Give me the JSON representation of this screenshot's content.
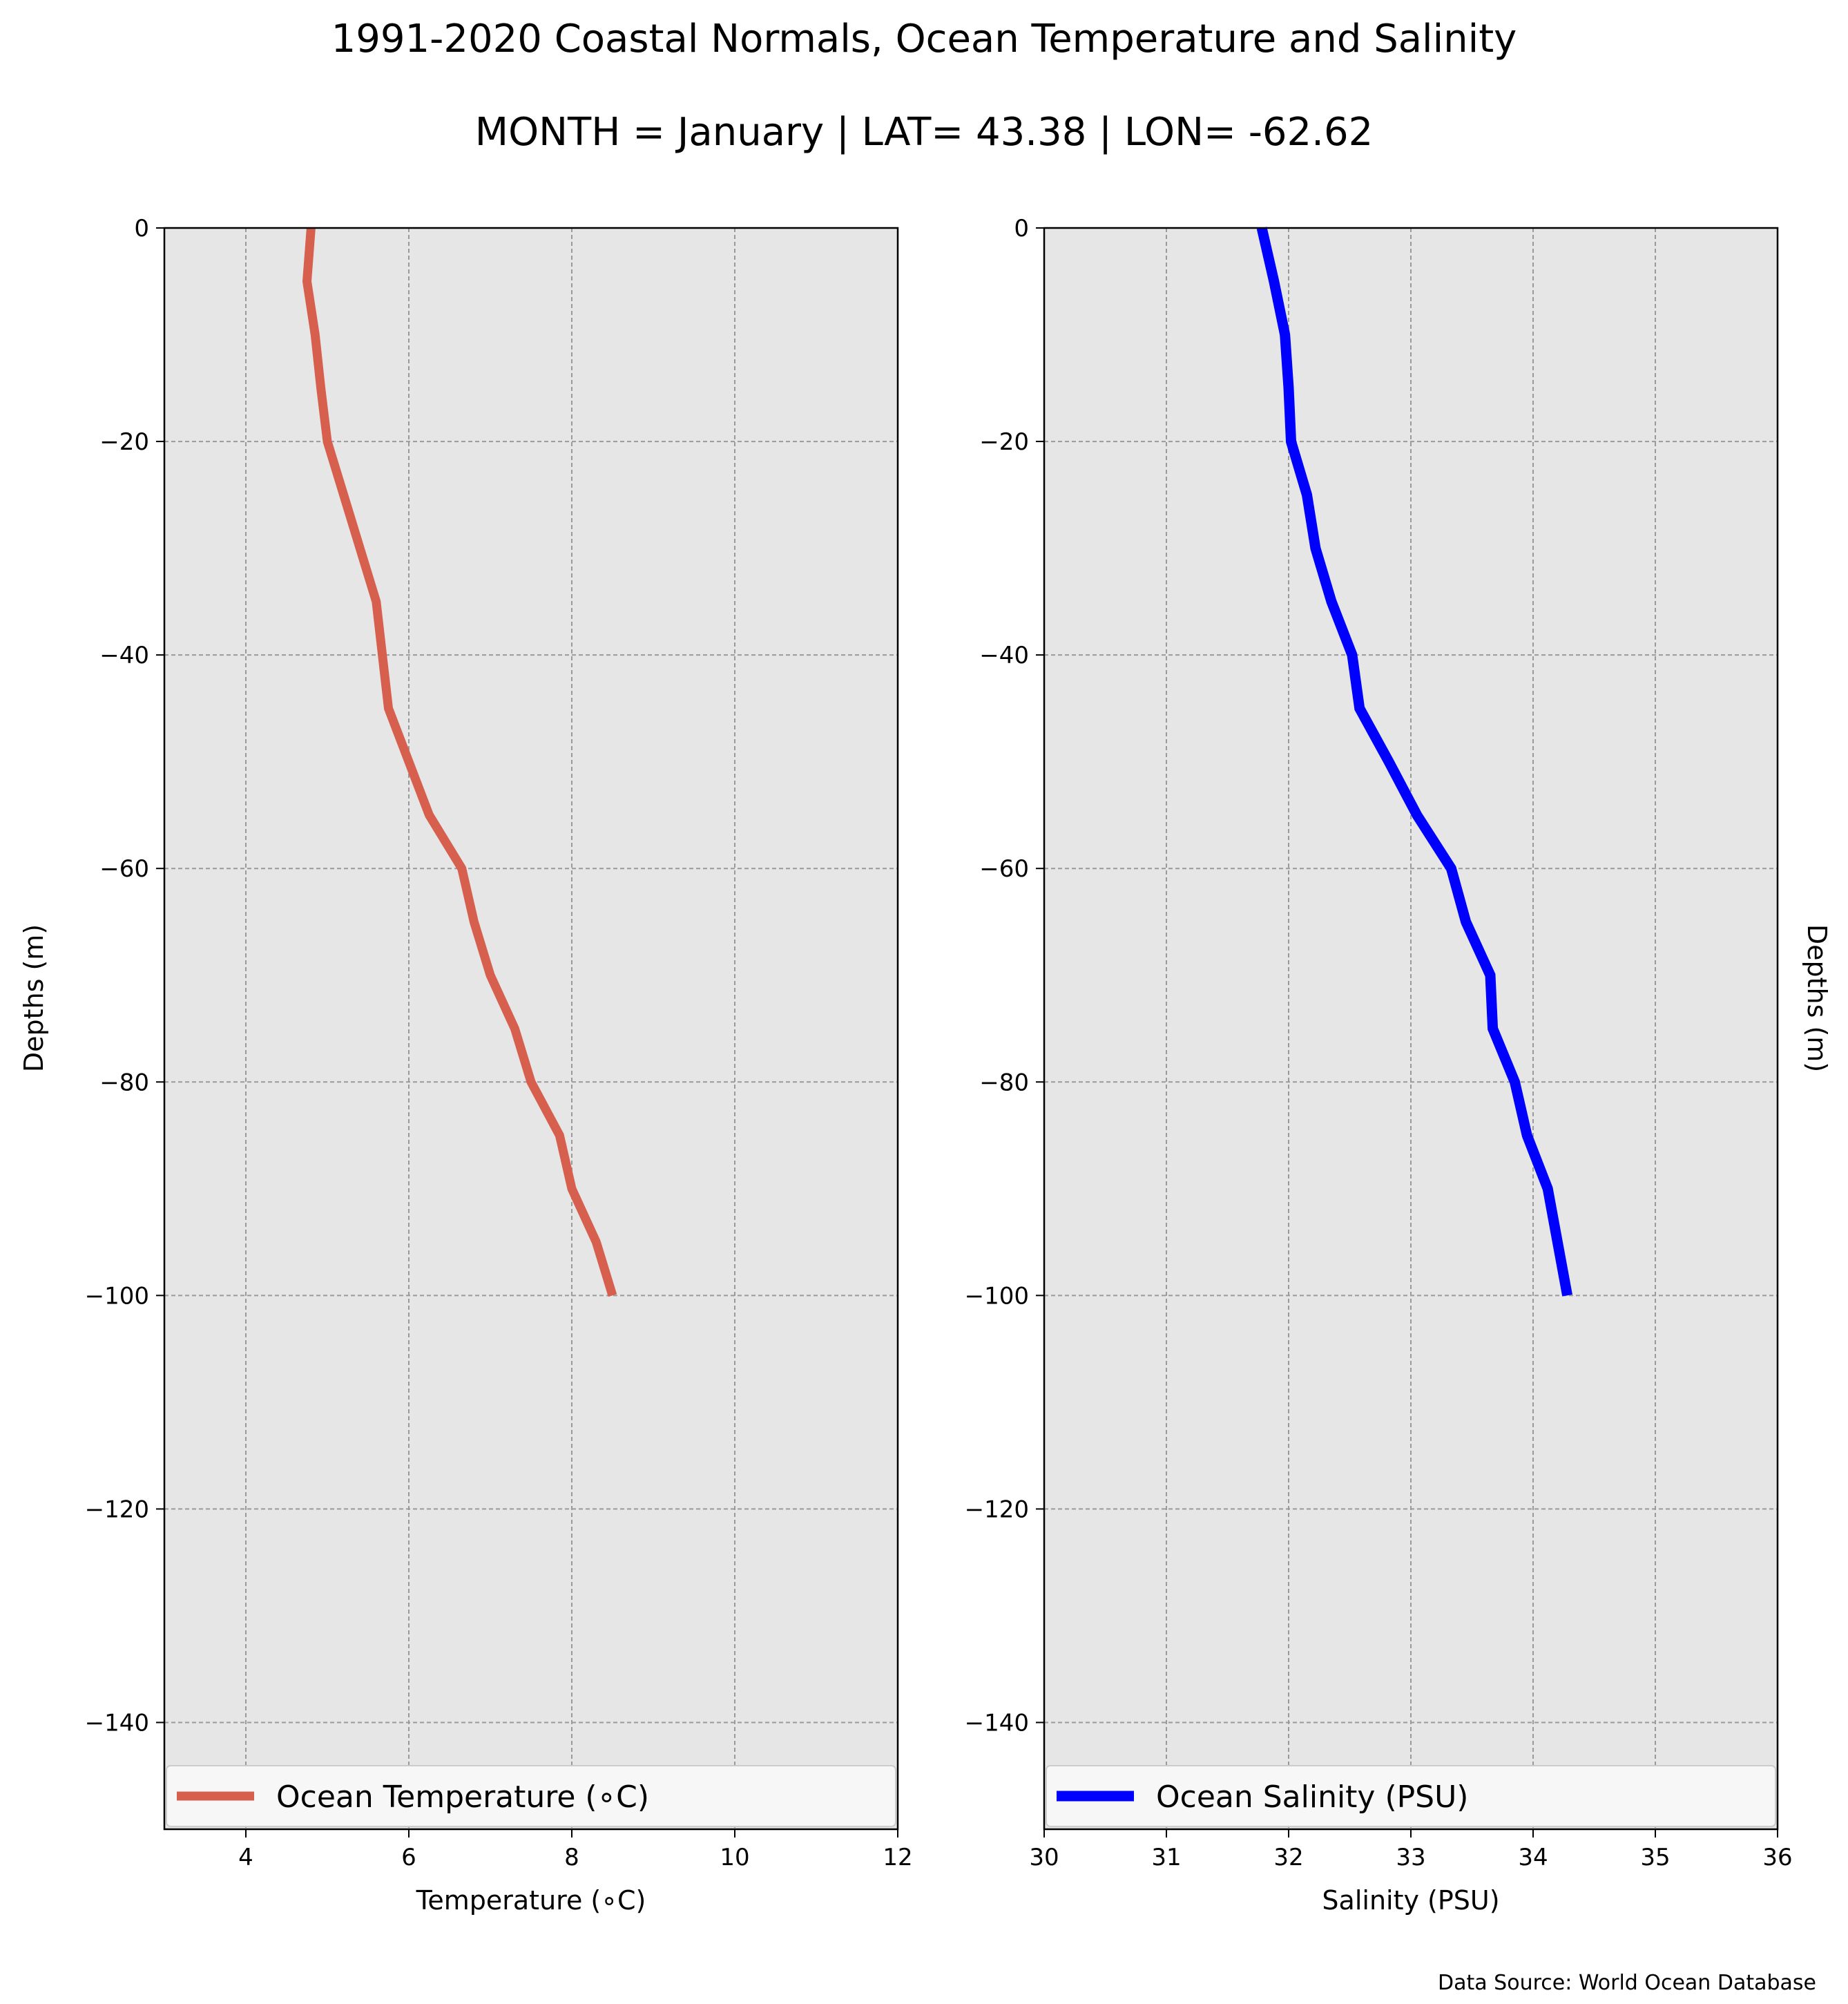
{
  "figure": {
    "title": "1991-2020 Coastal Normals, Ocean Temperature and Salinity",
    "subtitle": "MONTH = January | LAT= 43.38 | LON= -62.62",
    "source_note": "Data Source: World Ocean Database"
  },
  "chart_data": [
    {
      "type": "line",
      "xlabel": "Temperature (∘C)",
      "ylabel": "Depths (m)",
      "xlim": [
        3,
        12
      ],
      "ylim": [
        -150,
        0
      ],
      "xticks": [
        "4",
        "6",
        "8",
        "10",
        "12"
      ],
      "yticks": [
        "0",
        "−20",
        "−40",
        "−60",
        "−80",
        "−100",
        "−120",
        "−140"
      ],
      "grid": true,
      "legend": "bottom",
      "background": "#e6e6e6",
      "series": [
        {
          "name": "Ocean Temperature (∘C)",
          "color": "#d6604d",
          "x": [
            4.8,
            4.75,
            4.85,
            4.92,
            5.0,
            5.2,
            5.4,
            5.6,
            5.75,
            6.0,
            6.25,
            6.65,
            6.8,
            7.0,
            7.3,
            7.5,
            7.85,
            8.0,
            8.3,
            8.5
          ],
          "y": [
            0,
            -5,
            -10,
            -15,
            -20,
            -25,
            -30,
            -35,
            -45,
            -50,
            -55,
            -60,
            -65,
            -70,
            -75,
            -80,
            -85,
            -90,
            -95,
            -100
          ]
        }
      ]
    },
    {
      "type": "line",
      "xlabel": "Salinity (PSU)",
      "ylabel": "Depths (m)",
      "xlim": [
        30,
        36
      ],
      "ylim": [
        -150,
        0
      ],
      "xticks": [
        "30",
        "31",
        "32",
        "33",
        "34",
        "35",
        "36"
      ],
      "yticks": [
        "0",
        "−20",
        "−40",
        "−60",
        "−80",
        "−100",
        "−120",
        "−140"
      ],
      "grid": true,
      "legend": "bottom",
      "background": "#e6e6e6",
      "series": [
        {
          "name": "Ocean Salinity (PSU)",
          "color": "#0000ff",
          "x": [
            31.78,
            31.88,
            31.97,
            32.0,
            32.02,
            32.15,
            32.22,
            32.35,
            32.52,
            32.58,
            32.82,
            33.05,
            33.33,
            33.45,
            33.65,
            33.67,
            33.85,
            33.95,
            34.12,
            34.2,
            34.28
          ],
          "y": [
            0,
            -5,
            -10,
            -15,
            -20,
            -25,
            -30,
            -35,
            -40,
            -45,
            -50,
            -55,
            -60,
            -65,
            -70,
            -75,
            -80,
            -85,
            -90,
            -95,
            -100
          ]
        }
      ]
    }
  ]
}
